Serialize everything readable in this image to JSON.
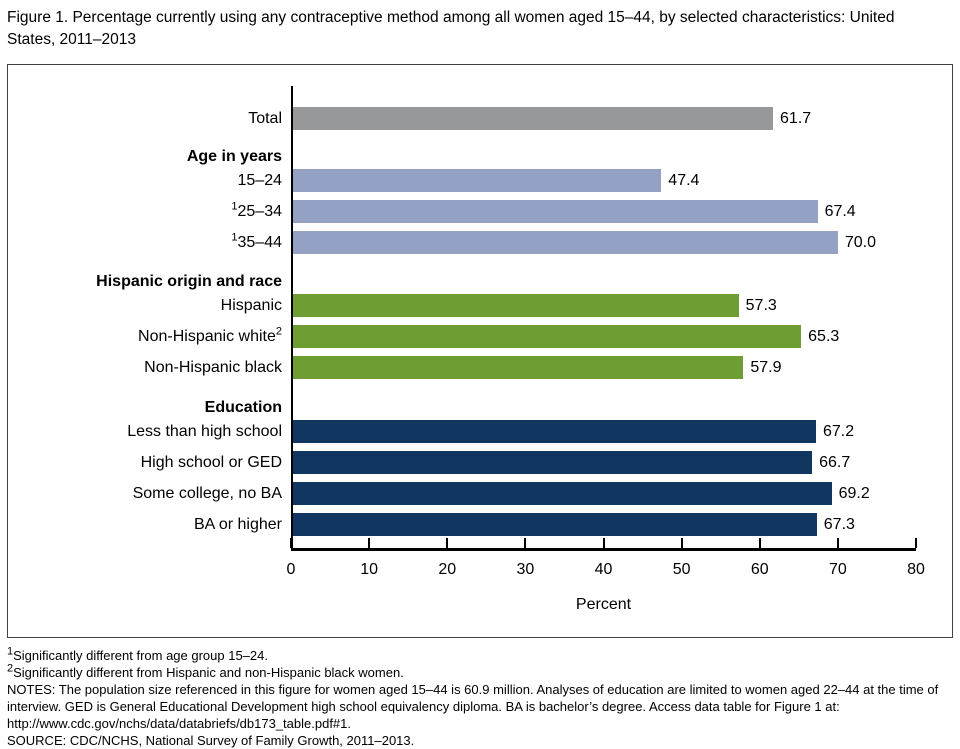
{
  "page_title": "Figure 1. Percentage currently using any contraceptive method among all women aged 15–44, by selected characteristics: United States, 2011–2013",
  "chart_data": {
    "type": "bar",
    "orientation": "horizontal",
    "title": "Figure 1. Percentage currently using any contraceptive method among all women aged 15–44, by selected characteristics: United States, 2011–2013",
    "xlabel": "Percent",
    "ylabel": "",
    "xlim": [
      0,
      80
    ],
    "xticks": [
      0,
      10,
      20,
      30,
      40,
      50,
      60,
      70,
      80
    ],
    "grid": false,
    "legend": false,
    "colors": {
      "total": "#97989A",
      "age": "#94A1C5",
      "race": "#6E9D33",
      "education": "#11365F"
    },
    "groups": [
      {
        "header": "",
        "color_key": "total",
        "items": [
          {
            "label": "Total",
            "sup_before": "",
            "sup_after": "",
            "value": 61.7
          }
        ]
      },
      {
        "header": "Age in years",
        "color_key": "age",
        "items": [
          {
            "label": "15–24",
            "sup_before": "",
            "sup_after": "",
            "value": 47.4
          },
          {
            "label": "25–34",
            "sup_before": "1",
            "sup_after": "",
            "value": 67.4
          },
          {
            "label": "35–44",
            "sup_before": "1",
            "sup_after": "",
            "value": 70.0
          }
        ]
      },
      {
        "header": "Hispanic origin and race",
        "color_key": "race",
        "items": [
          {
            "label": "Hispanic",
            "sup_before": "",
            "sup_after": "",
            "value": 57.3
          },
          {
            "label": "Non-Hispanic white",
            "sup_before": "",
            "sup_after": "2",
            "value": 65.3
          },
          {
            "label": "Non-Hispanic black",
            "sup_before": "",
            "sup_after": "",
            "value": 57.9
          }
        ]
      },
      {
        "header": "Education",
        "color_key": "education",
        "items": [
          {
            "label": "Less than high school",
            "sup_before": "",
            "sup_after": "",
            "value": 67.2
          },
          {
            "label": "High school or GED",
            "sup_before": "",
            "sup_after": "",
            "value": 66.7
          },
          {
            "label": "Some college, no BA",
            "sup_before": "",
            "sup_after": "",
            "value": 69.2
          },
          {
            "label": "BA or higher",
            "sup_before": "",
            "sup_after": "",
            "value": 67.3
          }
        ]
      }
    ]
  },
  "footnotes": [
    {
      "sup": "1",
      "text": "Significantly different from age group 15–24."
    },
    {
      "sup": "2",
      "text": "Significantly different from Hispanic and non-Hispanic black women."
    },
    {
      "sup": "",
      "text": "NOTES: The population size referenced in this figure for women aged 15–44 is 60.9 million. Analyses of education are limited to women aged 22–44 at the time of interview. GED is General Educational Development high school equivalency diploma. BA is bachelor’s degree. Access data table for Figure 1 at: http://www.cdc.gov/nchs/data/databriefs/db173_table.pdf#1."
    },
    {
      "sup": "",
      "text": "SOURCE: CDC/NCHS, National Survey of Family Growth, 2011–2013."
    }
  ]
}
